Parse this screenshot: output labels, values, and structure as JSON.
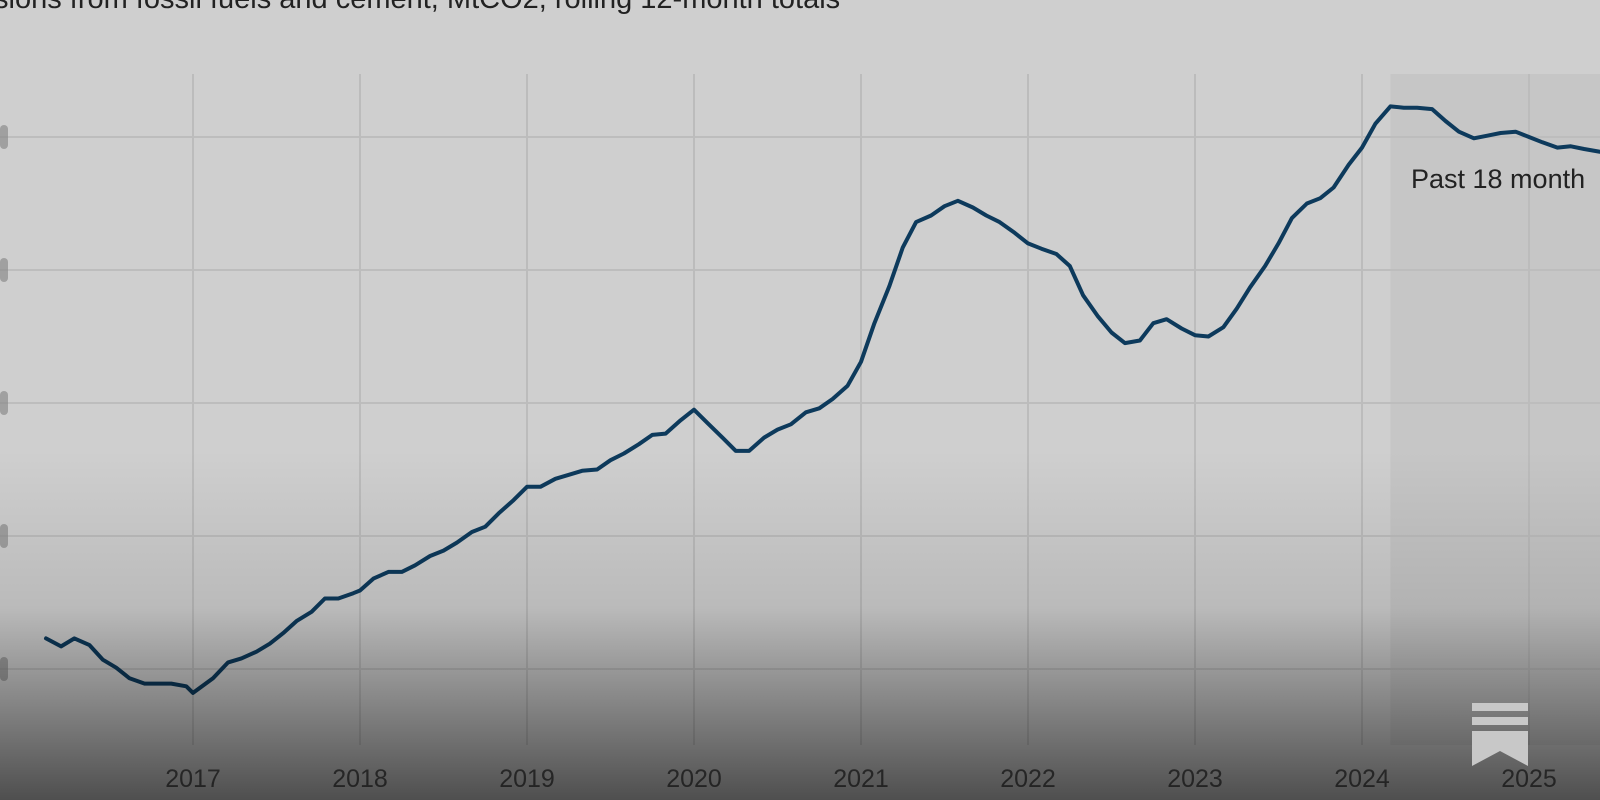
{
  "subtitle": "sions from fossil fuels and cement, MtCO2, rolling 12-month totals",
  "annotation": "Past 18 month",
  "accent_color": "#0d3a5c",
  "shade_color": "#c6c6c6",
  "logo_icon": "bookmark-logo-icon",
  "chart_data": {
    "type": "line",
    "title": "",
    "subtitle": "sions from fossil fuels and cement, MtCO2, rolling 12-month totals",
    "xlabel": "",
    "ylabel": "",
    "x_ticks": [
      "2017",
      "2018",
      "2019",
      "2020",
      "2021",
      "2022",
      "2023",
      "2024",
      "2025"
    ],
    "xlim": [
      2015.9,
      2026.4
    ],
    "ylim": [
      -0.5,
      4.3
    ],
    "y_gridlines": [
      0,
      1,
      2,
      3,
      4
    ],
    "grid": true,
    "shaded_region": {
      "from": 2024.17,
      "to": 2026.4,
      "label": "Past 18 month"
    },
    "series": [
      {
        "points": [
          [
            2016.12,
            0.23
          ],
          [
            2016.21,
            0.17
          ],
          [
            2016.29,
            0.23
          ],
          [
            2016.38,
            0.18
          ],
          [
            2016.46,
            0.07
          ],
          [
            2016.54,
            0.01
          ],
          [
            2016.62,
            -0.07
          ],
          [
            2016.71,
            -0.11
          ],
          [
            2016.79,
            -0.11
          ],
          [
            2016.87,
            -0.11
          ],
          [
            2016.96,
            -0.13
          ],
          [
            2017.0,
            -0.18
          ],
          [
            2017.12,
            -0.07
          ],
          [
            2017.21,
            0.05
          ],
          [
            2017.29,
            0.08
          ],
          [
            2017.38,
            0.13
          ],
          [
            2017.46,
            0.19
          ],
          [
            2017.54,
            0.27
          ],
          [
            2017.62,
            0.36
          ],
          [
            2017.71,
            0.43
          ],
          [
            2017.79,
            0.53
          ],
          [
            2017.87,
            0.53
          ],
          [
            2017.96,
            0.57
          ],
          [
            2018.0,
            0.59
          ],
          [
            2018.08,
            0.68
          ],
          [
            2018.17,
            0.73
          ],
          [
            2018.25,
            0.73
          ],
          [
            2018.33,
            0.78
          ],
          [
            2018.42,
            0.85
          ],
          [
            2018.5,
            0.89
          ],
          [
            2018.58,
            0.95
          ],
          [
            2018.67,
            1.03
          ],
          [
            2018.75,
            1.07
          ],
          [
            2018.83,
            1.17
          ],
          [
            2018.92,
            1.27
          ],
          [
            2019.0,
            1.37
          ],
          [
            2019.08,
            1.37
          ],
          [
            2019.17,
            1.43
          ],
          [
            2019.25,
            1.46
          ],
          [
            2019.33,
            1.49
          ],
          [
            2019.42,
            1.5
          ],
          [
            2019.5,
            1.57
          ],
          [
            2019.58,
            1.62
          ],
          [
            2019.67,
            1.69
          ],
          [
            2019.75,
            1.76
          ],
          [
            2019.83,
            1.77
          ],
          [
            2019.92,
            1.87
          ],
          [
            2020.0,
            1.95
          ],
          [
            2020.08,
            1.85
          ],
          [
            2020.17,
            1.74
          ],
          [
            2020.25,
            1.64
          ],
          [
            2020.33,
            1.64
          ],
          [
            2020.42,
            1.74
          ],
          [
            2020.5,
            1.8
          ],
          [
            2020.58,
            1.84
          ],
          [
            2020.67,
            1.93
          ],
          [
            2020.75,
            1.96
          ],
          [
            2020.83,
            2.03
          ],
          [
            2020.92,
            2.13
          ],
          [
            2021.0,
            2.31
          ],
          [
            2021.08,
            2.6
          ],
          [
            2021.17,
            2.88
          ],
          [
            2021.25,
            3.17
          ],
          [
            2021.33,
            3.36
          ],
          [
            2021.42,
            3.41
          ],
          [
            2021.5,
            3.48
          ],
          [
            2021.58,
            3.52
          ],
          [
            2021.67,
            3.47
          ],
          [
            2021.75,
            3.41
          ],
          [
            2021.83,
            3.36
          ],
          [
            2021.92,
            3.28
          ],
          [
            2022.0,
            3.2
          ],
          [
            2022.08,
            3.16
          ],
          [
            2022.17,
            3.12
          ],
          [
            2022.25,
            3.03
          ],
          [
            2022.33,
            2.81
          ],
          [
            2022.42,
            2.65
          ],
          [
            2022.5,
            2.53
          ],
          [
            2022.58,
            2.45
          ],
          [
            2022.67,
            2.47
          ],
          [
            2022.75,
            2.6
          ],
          [
            2022.83,
            2.63
          ],
          [
            2022.92,
            2.56
          ],
          [
            2023.0,
            2.51
          ],
          [
            2023.08,
            2.5
          ],
          [
            2023.17,
            2.57
          ],
          [
            2023.25,
            2.71
          ],
          [
            2023.33,
            2.87
          ],
          [
            2023.42,
            3.03
          ],
          [
            2023.5,
            3.2
          ],
          [
            2023.58,
            3.39
          ],
          [
            2023.67,
            3.5
          ],
          [
            2023.75,
            3.54
          ],
          [
            2023.83,
            3.62
          ],
          [
            2023.92,
            3.79
          ],
          [
            2024.0,
            3.92
          ],
          [
            2024.08,
            4.1
          ],
          [
            2024.17,
            4.23
          ],
          [
            2024.25,
            4.22
          ],
          [
            2024.33,
            4.22
          ],
          [
            2024.42,
            4.21
          ],
          [
            2024.5,
            4.12
          ],
          [
            2024.58,
            4.04
          ],
          [
            2024.67,
            3.99
          ],
          [
            2024.75,
            4.01
          ],
          [
            2024.83,
            4.03
          ],
          [
            2024.92,
            4.04
          ],
          [
            2025.0,
            4.0
          ],
          [
            2025.08,
            3.96
          ],
          [
            2025.17,
            3.92
          ],
          [
            2025.25,
            3.93
          ],
          [
            2025.33,
            3.91
          ],
          [
            2025.42,
            3.89
          ],
          [
            2025.5,
            3.87
          ]
        ]
      }
    ]
  }
}
